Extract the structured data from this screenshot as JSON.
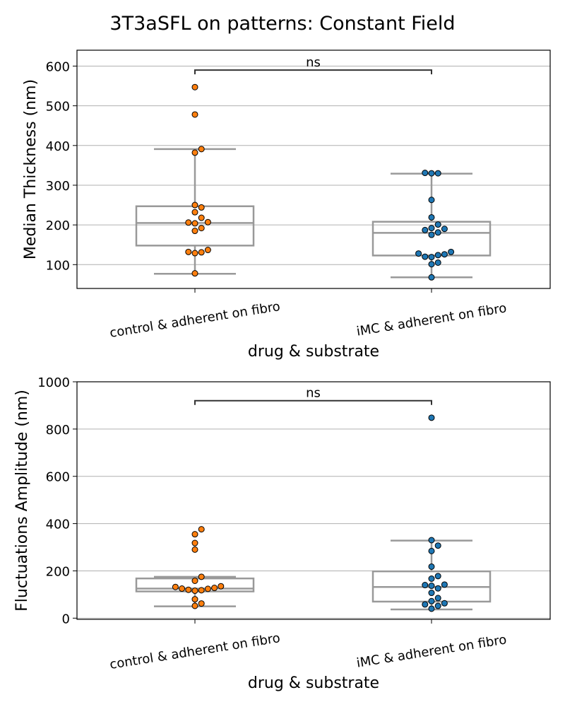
{
  "figure": {
    "title": "3T3aSFL on patterns: Constant Field"
  },
  "colors": {
    "control": "#ff7f0e",
    "imc": "#1f77b4",
    "box": "#999999",
    "grid": "#b0b0b0",
    "bracket": "#333333"
  },
  "chart_data": [
    {
      "type": "box",
      "title": "",
      "xlabel": "drug & substrate",
      "ylabel": "Median Thickness (nm)",
      "categories": [
        "control & adherent on fibro",
        "iMC & adherent on fibro"
      ],
      "ylim": [
        40,
        640
      ],
      "yticks": [
        100,
        200,
        300,
        400,
        500,
        600
      ],
      "ytick_labels": [
        "100",
        "200",
        "300",
        "400",
        "500",
        "600"
      ],
      "grid": "horizontal",
      "boxes": [
        {
          "whisker_low": 77,
          "q1": 148,
          "median": 205,
          "q3": 247,
          "whisker_high": 391
        },
        {
          "whisker_low": 68,
          "q1": 123,
          "median": 180,
          "q3": 208,
          "whisker_high": 329
        }
      ],
      "series": [
        {
          "category": "control & adherent on fibro",
          "values": [
            547,
            478,
            391,
            382,
            250,
            244,
            232,
            218,
            207,
            206,
            204,
            192,
            185,
            137,
            132,
            131,
            129,
            78
          ]
        },
        {
          "category": "iMC & adherent on fibro",
          "values": [
            330,
            330,
            331,
            263,
            219,
            201,
            192,
            190,
            187,
            181,
            175,
            132,
            128,
            126,
            124,
            120,
            119,
            105,
            101,
            68
          ]
        }
      ],
      "annotation": {
        "text": "ns",
        "from": 0,
        "to": 1,
        "y": 590
      }
    },
    {
      "type": "box",
      "title": "",
      "xlabel": "drug & substrate",
      "ylabel": "Fluctuations Amplitude (nm)",
      "categories": [
        "control & adherent on fibro",
        "iMC & adherent on fibro"
      ],
      "ylim": [
        -5,
        1000
      ],
      "yticks": [
        0,
        200,
        400,
        600,
        800,
        1000
      ],
      "ytick_labels": [
        "0",
        "200",
        "400",
        "600",
        "800",
        "1000"
      ],
      "grid": "horizontal",
      "boxes": [
        {
          "whisker_low": 50,
          "q1": 113,
          "median": 125,
          "q3": 168,
          "whisker_high": 175
        },
        {
          "whisker_low": 37,
          "q1": 70,
          "median": 132,
          "q3": 198,
          "whisker_high": 328
        }
      ],
      "series": [
        {
          "category": "control & adherent on fibro",
          "values": [
            376,
            355,
            318,
            290,
            175,
            158,
            135,
            132,
            128,
            125,
            124,
            120,
            118,
            116,
            80,
            62,
            52
          ]
        },
        {
          "category": "iMC & adherent on fibro",
          "values": [
            848,
            330,
            307,
            284,
            218,
            178,
            167,
            142,
            140,
            137,
            126,
            107,
            85,
            72,
            63,
            58,
            52,
            40
          ]
        }
      ],
      "annotation": {
        "text": "ns",
        "from": 0,
        "to": 1,
        "y": 920
      }
    }
  ]
}
